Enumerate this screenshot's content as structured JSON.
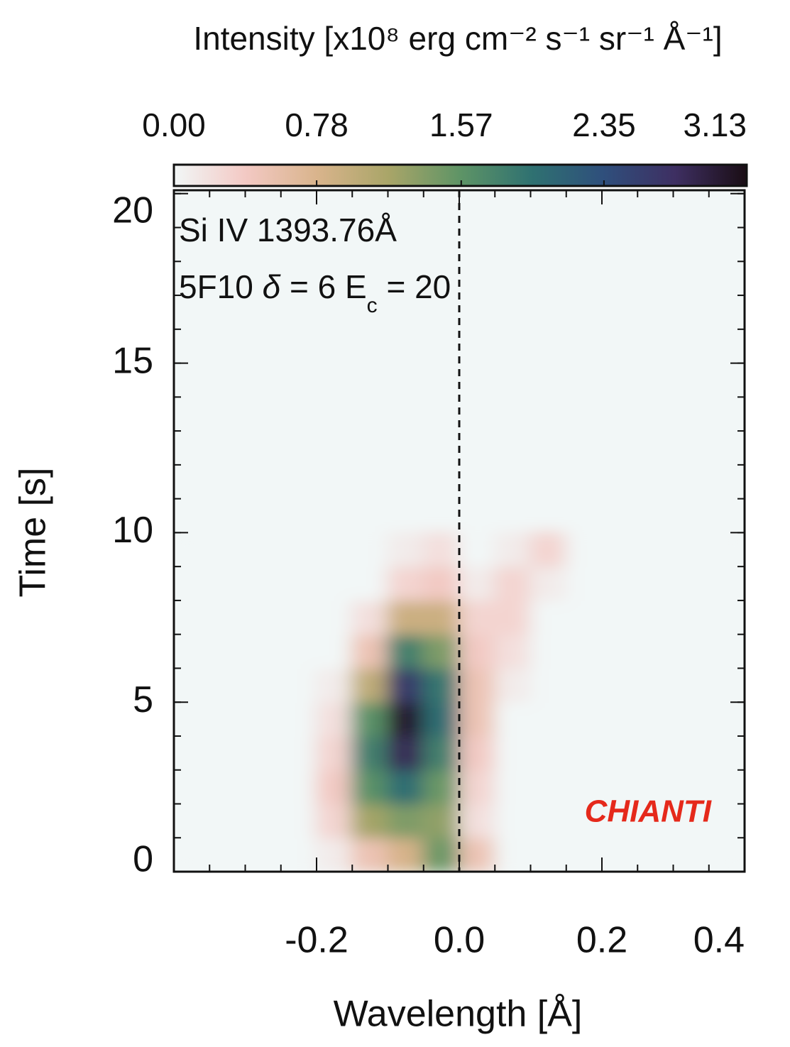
{
  "chart_data": {
    "type": "heatmap",
    "colorbar_label": "Intensity [x10⁸ erg cm⁻² s⁻¹ sr⁻¹ Å⁻¹]",
    "colorbar_lim": [
      0,
      3.13
    ],
    "colorbar_ticks": [
      {
        "value": 0,
        "label": "0.00"
      },
      0.78,
      1.57,
      2.35,
      3.13
    ],
    "colorscale": [
      "#f2f7f7",
      "#f3c9c4",
      "#d9b48c",
      "#a9a568",
      "#5e9466",
      "#2f7171",
      "#2f4f7c",
      "#3e2f62",
      "#1a0d14"
    ],
    "x_label": "Wavelength [Å]",
    "y_label": "Time [s]",
    "xlim": [
      -0.4,
      0.4
    ],
    "xticks": [
      -0.2,
      {
        "value": 0,
        "label": "0.0"
      },
      0.2,
      0.4
    ],
    "xminor_step": 0.05,
    "ylim": [
      0,
      20.1
    ],
    "yticks": [
      0,
      5,
      10,
      15,
      20
    ],
    "yminor_step": 1,
    "vline": 0,
    "annotations": [
      "Si IV  1393.76Å",
      [
        "5F10 ",
        "δ",
        " = 6 E",
        "c",
        " = 20"
      ]
    ],
    "label": "CHIANTI",
    "label_color": "#e5291b",
    "x": [
      -0.375,
      -0.325,
      -0.275,
      -0.225,
      -0.175,
      -0.125,
      -0.075,
      -0.025,
      0.025,
      0.075,
      0.125,
      0.175,
      0.225,
      0.275,
      0.325,
      0.375
    ],
    "y": [
      0.5,
      1.5,
      2.5,
      3.5,
      4.5,
      5.5,
      6.5,
      7.5,
      8.5,
      9.5
    ],
    "z": [
      [
        0,
        0,
        0,
        0,
        0.1,
        0.5,
        0.8,
        1.5,
        0.5,
        0,
        0,
        0,
        0,
        0,
        0,
        0
      ],
      [
        0,
        0,
        0,
        0,
        0.3,
        1.2,
        1.4,
        1.3,
        0.2,
        0,
        0,
        0,
        0,
        0,
        0,
        0
      ],
      [
        0,
        0,
        0,
        0,
        0.4,
        1.6,
        2.0,
        1.5,
        0.3,
        0,
        0,
        0,
        0,
        0,
        0,
        0
      ],
      [
        0,
        0,
        0,
        0,
        0.3,
        1.8,
        2.8,
        1.8,
        0.4,
        0,
        0,
        0,
        0,
        0,
        0,
        0
      ],
      [
        0,
        0,
        0,
        0,
        0.2,
        1.6,
        3.0,
        2.0,
        0.5,
        0,
        0,
        0,
        0,
        0,
        0,
        0
      ],
      [
        0,
        0,
        0,
        0,
        0.1,
        1.0,
        2.6,
        1.9,
        0.5,
        0.1,
        0,
        0,
        0,
        0,
        0,
        0
      ],
      [
        0,
        0,
        0,
        0,
        0,
        0.5,
        1.8,
        1.4,
        0.4,
        0.2,
        0,
        0,
        0,
        0,
        0,
        0
      ],
      [
        0,
        0,
        0,
        0,
        0,
        0.2,
        0.9,
        0.9,
        0.3,
        0.3,
        0,
        0,
        0,
        0,
        0,
        0
      ],
      [
        0,
        0,
        0,
        0,
        0,
        0,
        0.3,
        0.4,
        0.1,
        0.3,
        0.1,
        0,
        0,
        0,
        0,
        0
      ],
      [
        0,
        0,
        0,
        0,
        0,
        0,
        0.1,
        0.2,
        0,
        0.1,
        0.3,
        0,
        0,
        0,
        0,
        0
      ]
    ]
  }
}
